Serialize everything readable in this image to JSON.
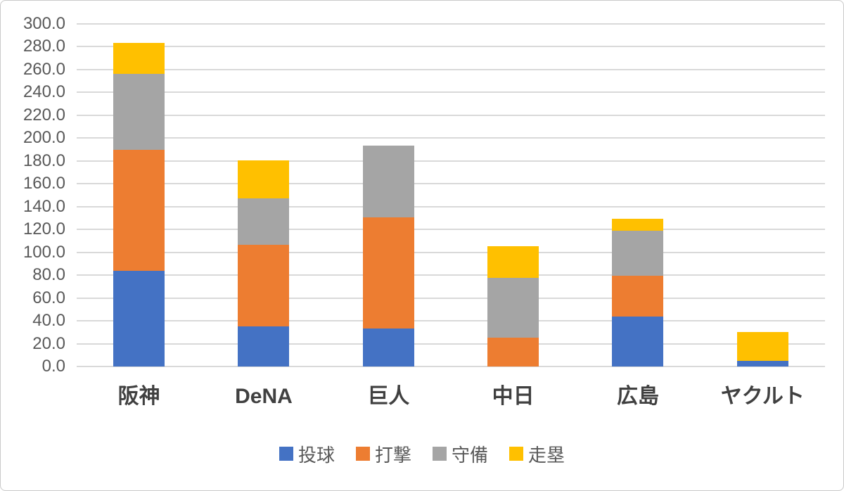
{
  "chart_data": {
    "type": "bar",
    "stacked": true,
    "title": "",
    "xlabel": "",
    "ylabel": "",
    "categories": [
      "阪神",
      "DeNA",
      "巨人",
      "中日",
      "広島",
      "ヤクルト"
    ],
    "series": [
      {
        "name": "投球",
        "color": "#4472C4",
        "values": [
          83.5,
          35.0,
          33.0,
          0,
          43.5,
          5.0
        ]
      },
      {
        "name": "打撃",
        "color": "#ED7D31",
        "values": [
          106.0,
          71.5,
          97.5,
          25.5,
          36.0,
          0
        ]
      },
      {
        "name": "守備",
        "color": "#A5A5A5",
        "values": [
          66.5,
          40.5,
          63.0,
          52.0,
          39.5,
          0
        ]
      },
      {
        "name": "走塁",
        "color": "#FFC000",
        "values": [
          27.5,
          33.5,
          0,
          28.0,
          10.5,
          25.0
        ]
      }
    ],
    "totals": [
      283.5,
      180.5,
      193.5,
      105.5,
      129.5,
      30.0
    ],
    "ylim": [
      0,
      300
    ],
    "ytick_step": 20,
    "ytick_labels": [
      "0.0",
      "20.0",
      "40.0",
      "60.0",
      "80.0",
      "100.0",
      "120.0",
      "140.0",
      "160.0",
      "180.0",
      "200.0",
      "220.0",
      "240.0",
      "260.0",
      "280.0",
      "300.0"
    ],
    "grid": true,
    "legend_position": "bottom",
    "legend_entries": [
      "投球",
      "打撃",
      "守備",
      "走塁"
    ]
  },
  "colors": {
    "grid": "#D9D9D9",
    "axis_text": "#595959",
    "category_text": "#404040",
    "background": "#FFFFFF",
    "border": "#C9C9C9"
  }
}
